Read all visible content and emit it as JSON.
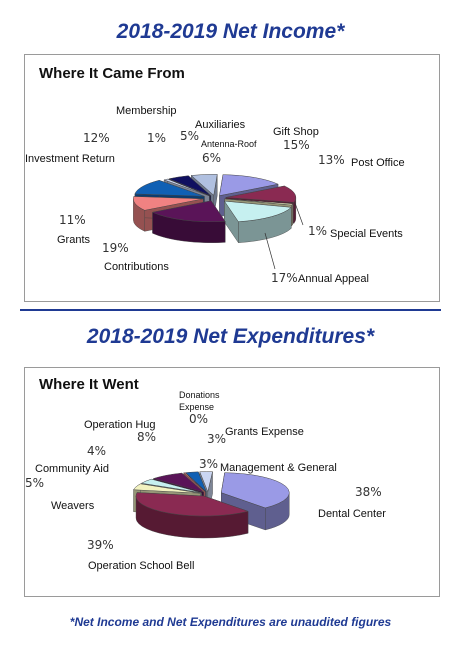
{
  "heading_income": "2018-2019 Net Income*",
  "heading_expend": "2018-2019 Net Expenditures*",
  "footnote": "*Net Income and Net Expenditures are unaudited figures",
  "chart_data": [
    {
      "type": "pie",
      "title": "Where It Came From",
      "slices": [
        {
          "label": "Gift Shop",
          "value": 15,
          "pct": "15%",
          "color": "#9a9ae6"
        },
        {
          "label": "Post Office",
          "value": 13,
          "pct": "13%",
          "color": "#8a2a52"
        },
        {
          "label": "Special Events",
          "value": 1,
          "pct": "1%",
          "color": "#f2f2c0"
        },
        {
          "label": "Annual Appeal",
          "value": 17,
          "pct": "17%",
          "color": "#c6f0f0"
        },
        {
          "label": "Contributions",
          "value": 19,
          "pct": "19%",
          "color": "#5a1458"
        },
        {
          "label": "Grants",
          "value": 11,
          "pct": "11%",
          "color": "#f08282"
        },
        {
          "label": "Investment Return",
          "value": 12,
          "pct": "12%",
          "color": "#1060b4"
        },
        {
          "label": "Membership",
          "value": 1,
          "pct": "1%",
          "color": "#cad6f2"
        },
        {
          "label": "Auxiliaries",
          "value": 5,
          "pct": "5%",
          "color": "#101060"
        },
        {
          "label": "Antenna-Roof",
          "value": 6,
          "pct": "6%",
          "color": "#b0c0e0"
        }
      ]
    },
    {
      "type": "pie",
      "title": "Where It Went",
      "slices": [
        {
          "label": "Dental Center",
          "value": 38,
          "pct": "38%",
          "color": "#9a9ae6"
        },
        {
          "label": "Operation School Bell",
          "value": 39,
          "pct": "39%",
          "color": "#8a2a52"
        },
        {
          "label": "Weavers",
          "value": 5,
          "pct": "5%",
          "color": "#f2f2c0"
        },
        {
          "label": "Community Aid",
          "value": 4,
          "pct": "4%",
          "color": "#c6f0f0"
        },
        {
          "label": "Operation Hug",
          "value": 8,
          "pct": "8%",
          "color": "#5a1458"
        },
        {
          "label": "Donations Expense",
          "value": 0,
          "pct": "0%",
          "color": "#f08282"
        },
        {
          "label": "Grants Expense",
          "value": 3,
          "pct": "3%",
          "color": "#1060b4"
        },
        {
          "label": "Management & General",
          "value": 3,
          "pct": "3%",
          "color": "#cad6f2"
        }
      ]
    }
  ]
}
